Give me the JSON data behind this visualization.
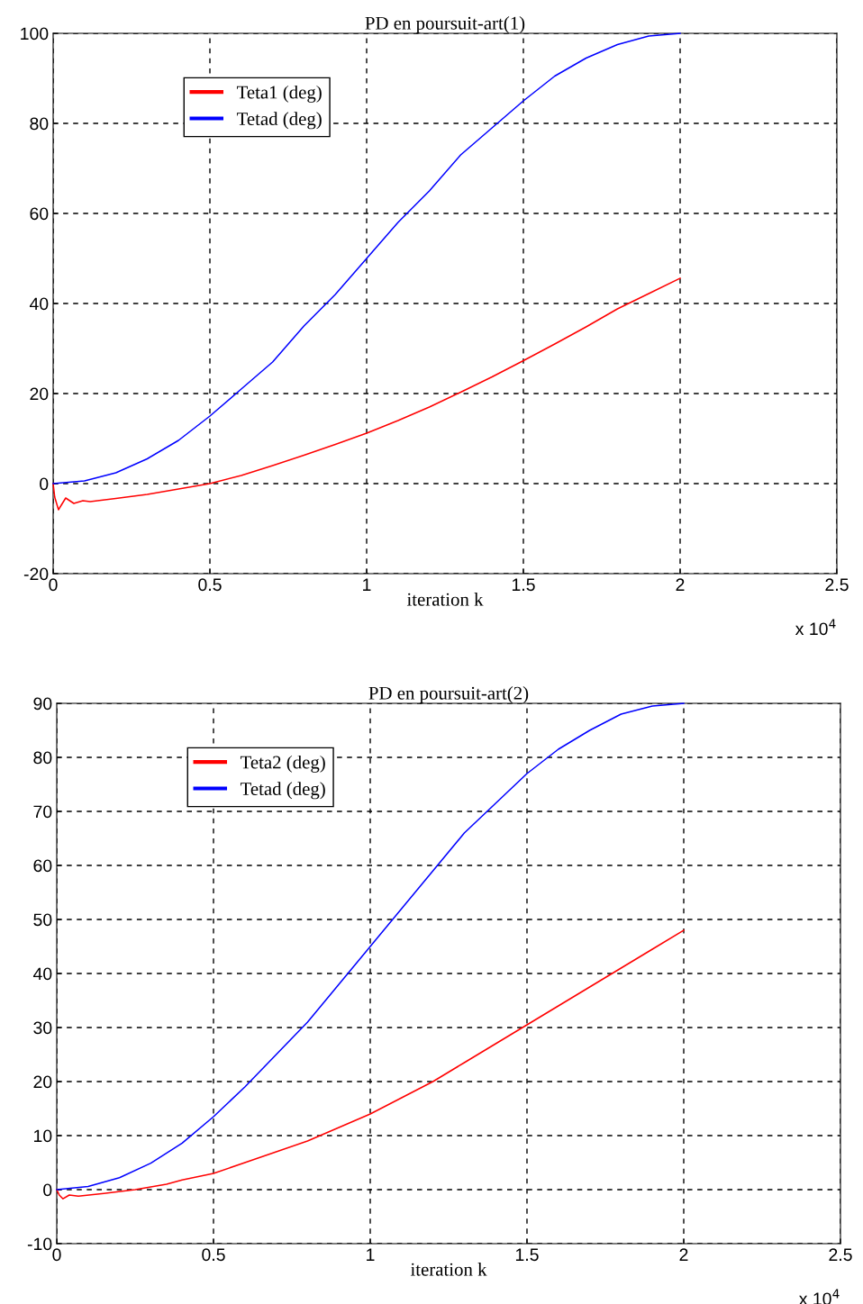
{
  "chart_data": [
    {
      "type": "line",
      "title": "PD en poursuit-art(1)",
      "xlabel": "iteration k",
      "annotations": [
        "x 10$^{4}$"
      ],
      "xlim": [
        0,
        2.5
      ],
      "ylim": [
        -20,
        100
      ],
      "xticks": [
        0,
        0.5,
        1,
        1.5,
        2,
        2.5
      ],
      "yticks": [
        -20,
        0,
        20,
        40,
        60,
        80,
        100
      ],
      "grid": true,
      "legend": "top left",
      "line_style": "solid",
      "marker": "none",
      "series": [
        {
          "name": "Teta1 (deg)",
          "color": "#ff0000",
          "x": [
            0,
            0.005,
            0.017,
            0.04,
            0.066,
            0.095,
            0.118,
            0.2,
            0.3,
            0.4,
            0.5,
            0.6,
            0.7,
            0.8,
            0.9,
            1.0,
            1.1,
            1.2,
            1.3,
            1.4,
            1.5,
            1.6,
            1.7,
            1.8,
            1.9,
            2.0
          ],
          "values": [
            0,
            -3,
            -5.8,
            -3.2,
            -4.4,
            -3.8,
            -4,
            -3.3,
            -2.4,
            -1.2,
            0,
            1.8,
            4,
            6.3,
            8.7,
            11.2,
            14,
            17,
            20.3,
            23.7,
            27.3,
            31,
            34.8,
            38.8,
            42.2,
            45.6
          ]
        },
        {
          "name": "Tetad (deg)",
          "color": "#0000ff",
          "x": [
            0,
            0.1,
            0.2,
            0.3,
            0.4,
            0.5,
            0.6,
            0.7,
            0.8,
            0.9,
            1.0,
            1.1,
            1.2,
            1.3,
            1.4,
            1.5,
            1.6,
            1.7,
            1.8,
            1.9,
            2.0
          ],
          "values": [
            0,
            0.6,
            2.4,
            5.5,
            9.6,
            15,
            21,
            27,
            35,
            42,
            50,
            58,
            65,
            73,
            79,
            85,
            90.5,
            94.5,
            97.5,
            99.4,
            100
          ]
        }
      ]
    },
    {
      "type": "line",
      "title": "PD en poursuit-art(2)",
      "xlabel": "iteration k",
      "annotations": [
        "x 10$^{4}$"
      ],
      "xlim": [
        0,
        2.5
      ],
      "ylim": [
        -10,
        90
      ],
      "xticks": [
        0,
        0.5,
        1,
        1.5,
        2,
        2.5
      ],
      "yticks": [
        -10,
        0,
        10,
        20,
        30,
        40,
        50,
        60,
        70,
        80,
        90
      ],
      "grid": true,
      "legend": "top left",
      "line_style": "solid",
      "marker": "none",
      "series": [
        {
          "name": "Teta2 (deg)",
          "color": "#ff0000",
          "x": [
            0,
            0.008,
            0.02,
            0.04,
            0.069,
            0.15,
            0.25,
            0.35,
            0.4,
            0.5,
            0.6,
            0.7,
            0.8,
            0.9,
            1.0,
            1.1,
            1.2,
            1.3,
            1.4,
            1.5,
            1.6,
            1.7,
            1.8,
            1.9,
            2.0
          ],
          "values": [
            0,
            -1,
            -1.7,
            -1,
            -1.2,
            -0.7,
            0,
            1,
            1.8,
            3,
            5,
            7,
            9,
            11.5,
            14,
            17,
            20,
            23.5,
            27,
            30.5,
            34,
            37.5,
            41,
            44.5,
            48
          ]
        },
        {
          "name": "Tetad (deg)",
          "color": "#0000ff",
          "x": [
            0,
            0.1,
            0.2,
            0.3,
            0.4,
            0.5,
            0.6,
            0.7,
            0.8,
            0.9,
            1.0,
            1.1,
            1.2,
            1.3,
            1.4,
            1.5,
            1.6,
            1.7,
            1.8,
            1.9,
            2.0
          ],
          "values": [
            0,
            0.6,
            2.2,
            4.9,
            8.6,
            13.5,
            19,
            25,
            31,
            38,
            45,
            52,
            59,
            66,
            71.5,
            77,
            81.5,
            85,
            88,
            89.5,
            90
          ]
        }
      ]
    }
  ]
}
